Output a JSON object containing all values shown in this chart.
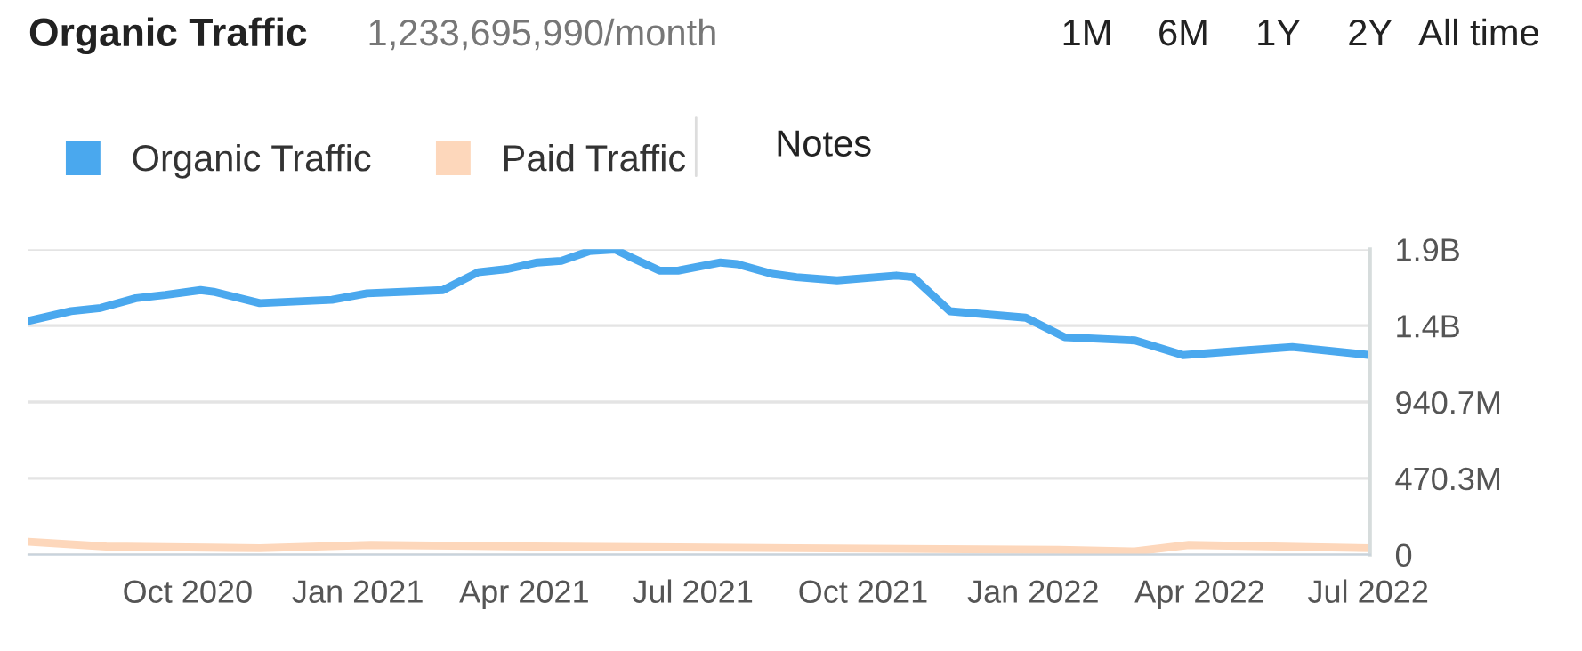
{
  "chart_data": {
    "type": "line",
    "title": "Organic Traffic",
    "subtitle": "1,233,695,990/month",
    "annotations": [
      "1M",
      "6M",
      "1Y",
      "2Y",
      "All time",
      "Notes"
    ],
    "xlim": [
      "2020-07-07",
      "2022-07-02"
    ],
    "xticks": [
      {
        "value": "2020-10-01",
        "label": "Oct 2020"
      },
      {
        "value": "2021-01-01",
        "label": "Jan 2021"
      },
      {
        "value": "2021-04-01",
        "label": "Apr 2021"
      },
      {
        "value": "2021-07-01",
        "label": "Jul 2021"
      },
      {
        "value": "2021-10-01",
        "label": "Oct 2021"
      },
      {
        "value": "2022-01-01",
        "label": "Jan 2022"
      },
      {
        "value": "2022-04-01",
        "label": "Apr 2022"
      },
      {
        "value": "2022-07-01",
        "label": "Jul 2022"
      }
    ],
    "ylim": [
      0,
      1881400000
    ],
    "yticks": [
      0,
      {
        "value": 470300000,
        "label": "470.3M"
      },
      {
        "value": 940700000,
        "label": "940.7M"
      },
      {
        "value": 1411000000,
        "label": "1.4B"
      },
      {
        "value": 1881400000,
        "label": "1.9B"
      }
    ],
    "grid": "y",
    "legend": "top left",
    "series": [
      {
        "name": "Organic Traffic",
        "color": "#4aa8ee",
        "x": [
          "2020-07-07",
          "2020-07-30",
          "2020-08-15",
          "2020-09-03",
          "2020-09-19",
          "2020-10-08",
          "2020-10-15",
          "2020-11-09",
          "2020-12-18",
          "2021-01-06",
          "2021-02-16",
          "2021-03-07",
          "2021-03-23",
          "2021-04-08",
          "2021-04-21",
          "2021-05-06",
          "2021-05-20",
          "2021-05-29",
          "2021-06-13",
          "2021-06-23",
          "2021-07-16",
          "2021-07-25",
          "2021-08-13",
          "2021-08-26",
          "2021-09-17",
          "2021-10-19",
          "2021-10-28",
          "2021-11-17",
          "2021-12-28",
          "2022-01-18",
          "2022-02-25",
          "2022-03-23",
          "2022-04-27",
          "2022-05-21",
          "2022-07-02"
        ],
        "values": [
          1440000000,
          1500000000,
          1520000000,
          1580000000,
          1600000000,
          1630000000,
          1620000000,
          1550000000,
          1570000000,
          1610000000,
          1630000000,
          1740000000,
          1760000000,
          1800000000,
          1810000000,
          1870000000,
          1880000000,
          1830000000,
          1750000000,
          1750000000,
          1800000000,
          1790000000,
          1730000000,
          1710000000,
          1690000000,
          1720000000,
          1710000000,
          1500000000,
          1460000000,
          1340000000,
          1320000000,
          1230000000,
          1260000000,
          1280000000,
          1230000000
        ]
      },
      {
        "name": "Paid Traffic",
        "color": "#fdd7bb",
        "x": [
          "2020-07-07",
          "2020-08-18",
          "2020-11-09",
          "2021-01-08",
          "2021-04-05",
          "2021-08-26",
          "2022-01-15",
          "2022-02-25",
          "2022-03-26",
          "2022-07-02"
        ],
        "values": [
          80000000,
          50000000,
          40000000,
          60000000,
          50000000,
          40000000,
          30000000,
          20000000,
          60000000,
          40000000
        ]
      }
    ]
  }
}
